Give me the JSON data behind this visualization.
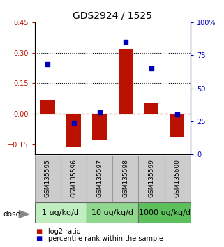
{
  "title": "GDS2924 / 1525",
  "samples": [
    "GSM135595",
    "GSM135596",
    "GSM135597",
    "GSM135598",
    "GSM135599",
    "GSM135600"
  ],
  "log2_ratio": [
    0.07,
    -0.165,
    -0.13,
    0.32,
    0.05,
    -0.115
  ],
  "percentile_rank": [
    68,
    24,
    32,
    85,
    65,
    30
  ],
  "ylim_left": [
    -0.2,
    0.45
  ],
  "ylim_right": [
    0,
    100
  ],
  "yticks_left": [
    -0.15,
    0,
    0.15,
    0.3,
    0.45
  ],
  "yticks_right": [
    0,
    25,
    50,
    75,
    100
  ],
  "hlines": [
    0.15,
    0.3
  ],
  "doses": [
    {
      "label": "1 ug/kg/d",
      "cols": [
        0,
        1
      ],
      "color": "#c0eec0"
    },
    {
      "label": "10 ug/kg/d",
      "cols": [
        2,
        3
      ],
      "color": "#90d890"
    },
    {
      "label": "1000 ug/kg/d",
      "cols": [
        4,
        5
      ],
      "color": "#5cc05c"
    }
  ],
  "bar_color": "#bb1100",
  "dot_color": "#0000bb",
  "zero_line_color": "#cc2200",
  "title_fontsize": 10,
  "tick_fontsize": 7,
  "legend_fontsize": 7,
  "sample_fontsize": 6.5,
  "dose_fontsize": 8,
  "dose_label_color": "#888888",
  "sample_box_color": "#cccccc",
  "sample_box_edge": "#999999"
}
